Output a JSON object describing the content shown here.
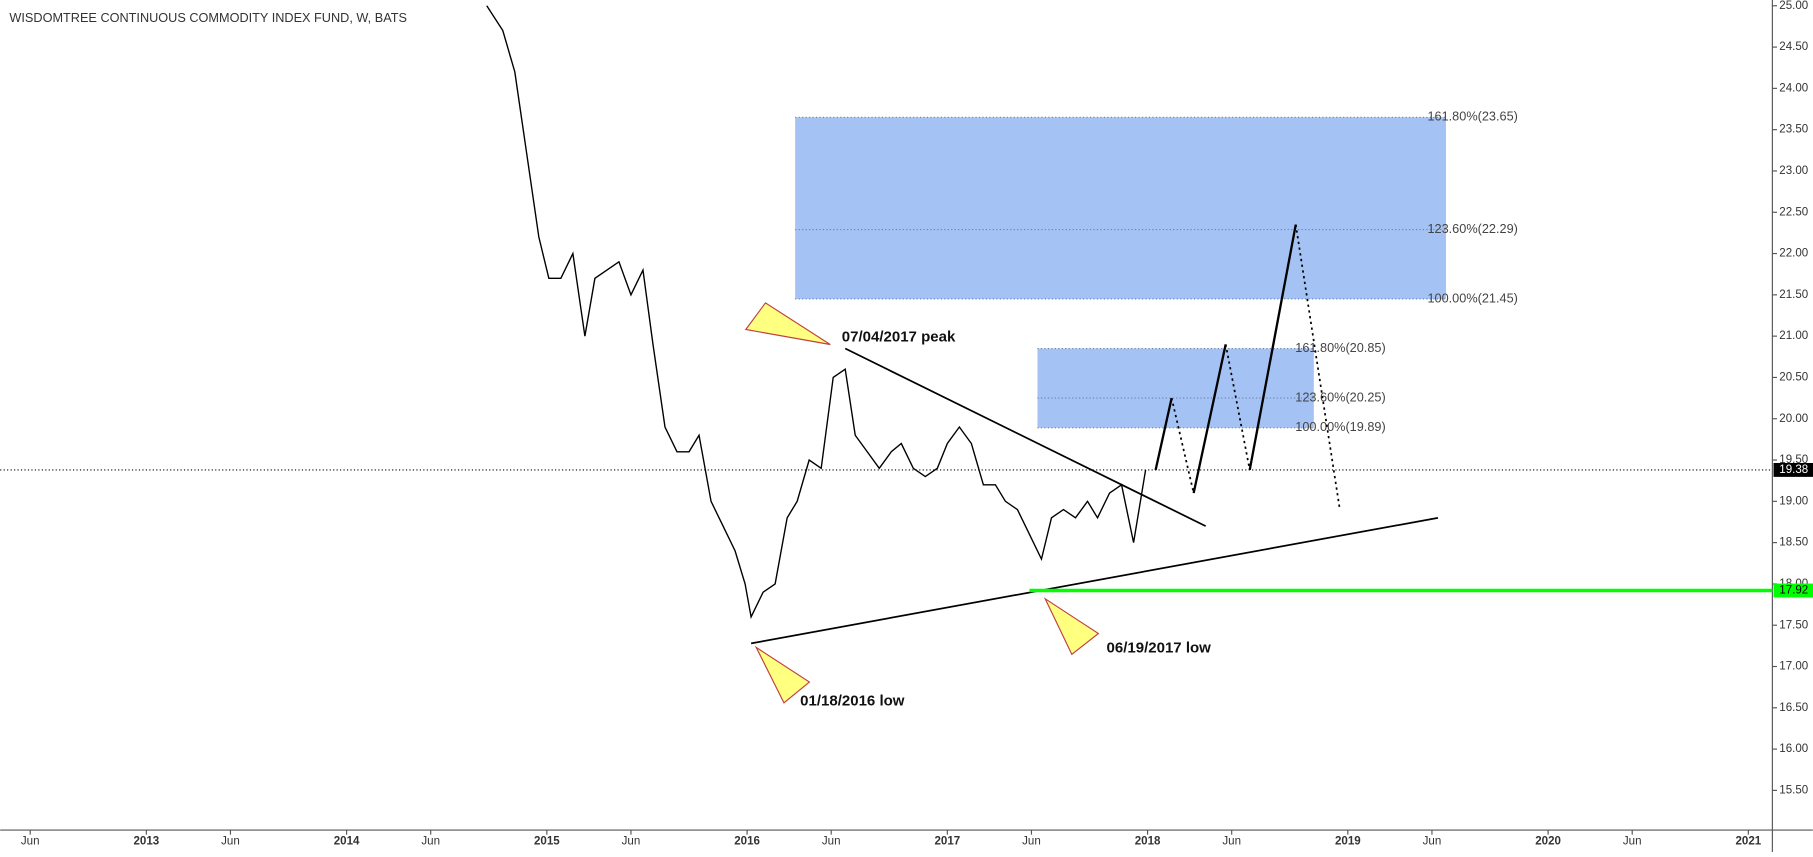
{
  "chart_data": {
    "type": "line",
    "title": "WISDOMTREE CONTINUOUS COMMODITY INDEX FUND, W, BATS",
    "xlim": [
      2012.27,
      2021.12
    ],
    "ylim": [
      15.02,
      25.07
    ],
    "xticks": [
      {
        "value": 2012.42,
        "label": "Jun"
      },
      2013,
      {
        "value": 2013.42,
        "label": "Jun"
      },
      2014,
      {
        "value": 2014.42,
        "label": "Jun"
      },
      2015,
      {
        "value": 2015.42,
        "label": "Jun"
      },
      2016,
      {
        "value": 2016.42,
        "label": "Jun"
      },
      2017,
      {
        "value": 2017.42,
        "label": "Jun"
      },
      2018,
      {
        "value": 2018.42,
        "label": "Jun"
      },
      2019,
      {
        "value": 2019.42,
        "label": "Jun"
      },
      2020,
      {
        "value": 2020.42,
        "label": "Jun"
      },
      2021
    ],
    "yticks": [
      {
        "value": 15.5,
        "label": "15.50"
      },
      {
        "value": 16,
        "label": "16.00"
      },
      {
        "value": 16.5,
        "label": "16.50"
      },
      {
        "value": 17,
        "label": "17.00"
      },
      {
        "value": 17.5,
        "label": "17.50"
      },
      {
        "value": 18,
        "label": "18.00"
      },
      {
        "value": 18.5,
        "label": "18.50"
      },
      {
        "value": 19,
        "label": "19.00"
      },
      {
        "value": 19.5,
        "label": "19.50"
      },
      {
        "value": 20,
        "label": "20.00"
      },
      {
        "value": 20.5,
        "label": "20.50"
      },
      {
        "value": 21,
        "label": "21.00"
      },
      {
        "value": 21.5,
        "label": "21.50"
      },
      {
        "value": 22,
        "label": "22.00"
      },
      {
        "value": 22.5,
        "label": "22.50"
      },
      {
        "value": 23,
        "label": "23.00"
      },
      {
        "value": 23.5,
        "label": "23.50"
      },
      {
        "value": 24,
        "label": "24.00"
      },
      {
        "value": 24.5,
        "label": "24.50"
      },
      {
        "value": 25,
        "label": "25.00"
      }
    ],
    "x": [
      2014.7,
      2014.78,
      2014.84,
      2014.9,
      2014.96,
      2015.01,
      2015.07,
      2015.13,
      2015.19,
      2015.24,
      2015.3,
      2015.36,
      2015.42,
      2015.48,
      2015.53,
      2015.59,
      2015.65,
      2015.71,
      2015.76,
      2015.82,
      2015.88,
      2015.94,
      2015.99,
      2016.02,
      2016.08,
      2016.14,
      2016.2,
      2016.25,
      2016.31,
      2016.37,
      2016.43,
      2016.49,
      2016.54,
      2016.6,
      2016.66,
      2016.72,
      2016.77,
      2016.83,
      2016.89,
      2016.95,
      2017.0,
      2017.06,
      2017.12,
      2017.18,
      2017.24,
      2017.29,
      2017.35,
      2017.41,
      2017.47,
      2017.52,
      2017.58,
      2017.64,
      2017.7,
      2017.75,
      2017.81,
      2017.87,
      2017.93,
      2017.99
    ],
    "series": [
      {
        "color": "#000000",
        "values": [
          25.0,
          24.7,
          24.2,
          23.2,
          22.2,
          21.7,
          21.7,
          22.0,
          21.0,
          21.7,
          21.8,
          21.9,
          21.5,
          21.8,
          20.9,
          19.9,
          19.6,
          19.6,
          19.8,
          19.0,
          18.7,
          18.4,
          18.0,
          17.6,
          17.9,
          18.0,
          18.8,
          19.0,
          19.5,
          19.4,
          20.5,
          20.6,
          19.8,
          19.6,
          19.4,
          19.6,
          19.7,
          19.4,
          19.3,
          19.4,
          19.7,
          19.9,
          19.7,
          19.2,
          19.2,
          19.0,
          18.9,
          18.6,
          18.3,
          18.8,
          18.9,
          18.8,
          19.0,
          18.8,
          19.1,
          19.2,
          18.5,
          19.38
        ]
      }
    ],
    "last_price": {
      "value": 19.38,
      "label": "19.38"
    },
    "support": {
      "value": 17.92,
      "label": "17.92",
      "x_start": 2017.41,
      "color": "#00ff00"
    },
    "fib_zones": [
      {
        "x": [
          2016.24,
          2019.49
        ],
        "y": [
          21.45,
          23.65
        ],
        "levels": [
          {
            "value": 23.65,
            "label": "161.80%(23.65)"
          },
          {
            "value": 22.29,
            "label": "123.60%(22.29)"
          },
          {
            "value": 21.45,
            "label": "100.00%(21.45)"
          }
        ]
      },
      {
        "x": [
          2017.45,
          2018.83
        ],
        "y": [
          19.89,
          20.85
        ],
        "levels": [
          {
            "value": 20.85,
            "label": "161.80%(20.85)"
          },
          {
            "value": 20.25,
            "label": "123.60%(20.25)"
          },
          {
            "value": 19.89,
            "label": "100.00%(19.89)"
          }
        ]
      }
    ],
    "trendlines": [
      {
        "x": [
          2016.49,
          2018.29
        ],
        "y": [
          20.85,
          18.7
        ]
      },
      {
        "x": [
          2016.02,
          2019.45
        ],
        "y": [
          17.28,
          18.8
        ]
      }
    ],
    "projection": {
      "x": [
        2018.04,
        2018.12,
        2018.23,
        2018.39,
        2018.51,
        2018.74,
        2018.96
      ],
      "y": [
        19.38,
        20.25,
        19.1,
        20.9,
        19.38,
        22.35,
        18.9
      ]
    },
    "annotations": [
      "07/04/2017 peak",
      "06/19/2017 low",
      "01/18/2016 low"
    ]
  }
}
